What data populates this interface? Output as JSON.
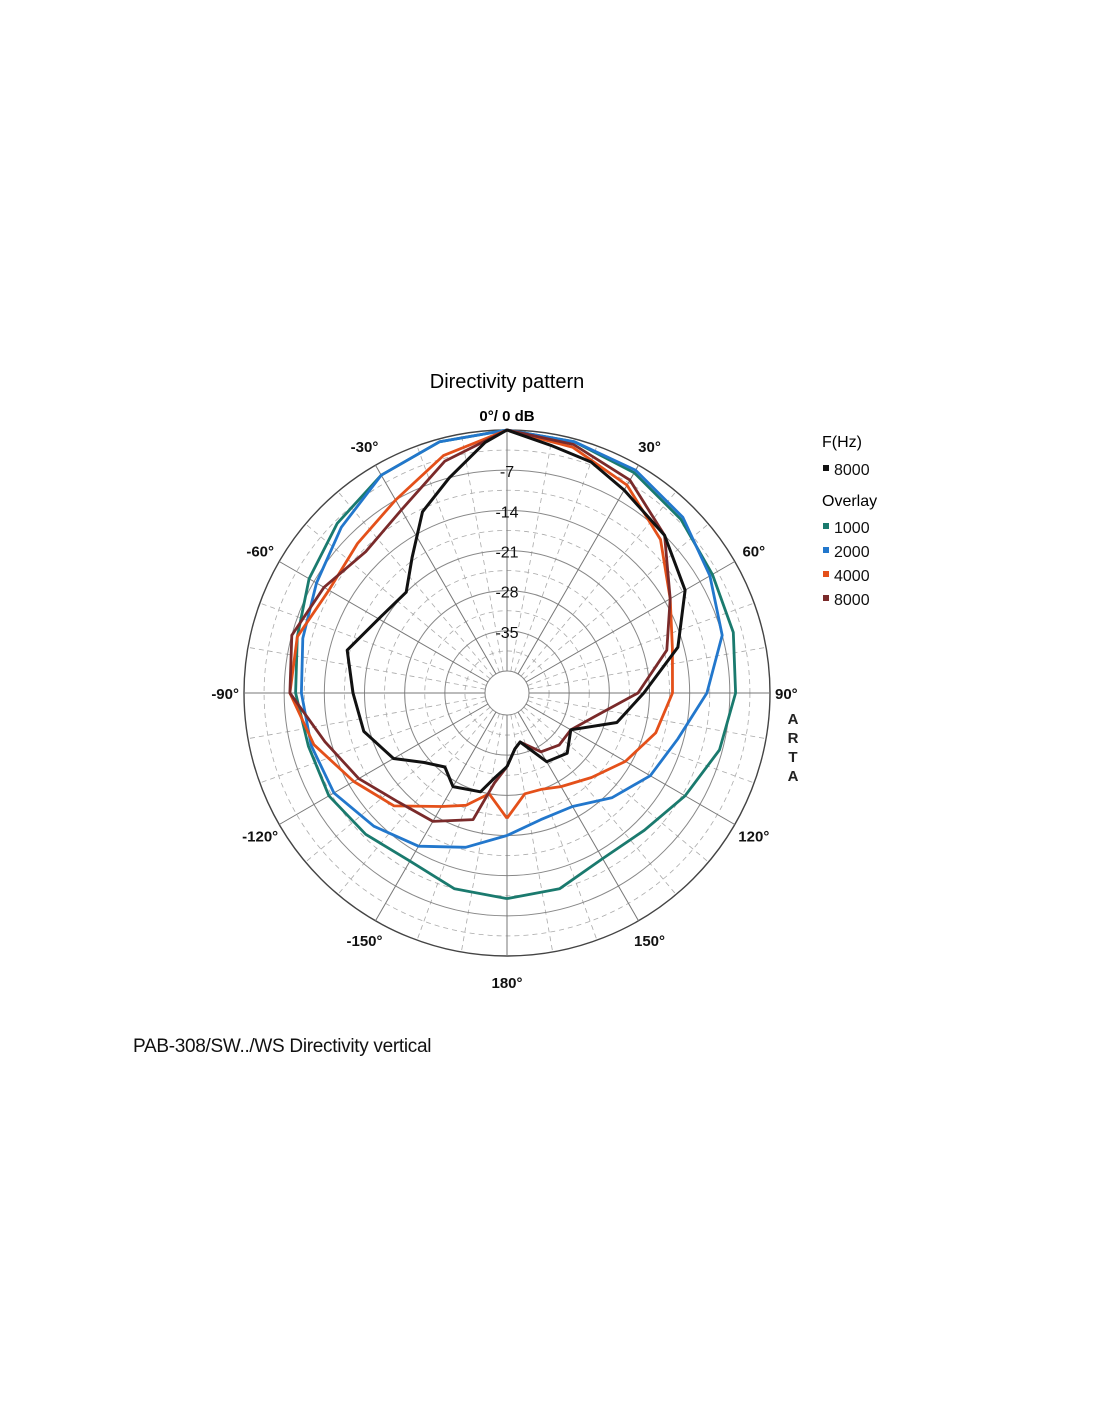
{
  "chart_data": {
    "type": "polar",
    "title": "Directivity pattern",
    "top_label": "0°/ 0 dB",
    "radial_scale": {
      "max_db": 0,
      "min_db": -42,
      "tick_values": [
        -7,
        -14,
        -21,
        -28,
        -35
      ],
      "tick_labels": [
        "-7",
        "-14",
        "-21",
        "-28",
        "-35"
      ]
    },
    "angle_ticks": [
      {
        "deg": -30,
        "label": "-30°"
      },
      {
        "deg": 30,
        "label": "30°"
      },
      {
        "deg": -60,
        "label": "-60°"
      },
      {
        "deg": 60,
        "label": "60°"
      },
      {
        "deg": -90,
        "label": "-90°"
      },
      {
        "deg": 90,
        "label": "90°"
      },
      {
        "deg": -120,
        "label": "-120°"
      },
      {
        "deg": 120,
        "label": "120°"
      },
      {
        "deg": -150,
        "label": "-150°"
      },
      {
        "deg": 150,
        "label": "150°"
      },
      {
        "deg": 180,
        "label": "180°"
      }
    ],
    "watermark": [
      "A",
      "R",
      "T",
      "A"
    ],
    "legend": {
      "heading": "F(Hz)",
      "main_entry": "8000",
      "overlay_heading": "Overlay",
      "overlay_entries": [
        "1000",
        "2000",
        "4000",
        "8000"
      ]
    },
    "series": [
      {
        "name": "1000",
        "group": "overlay",
        "color": "#1a7a6e",
        "angles": [
          -180,
          -165,
          -150,
          -135,
          -120,
          -105,
          -90,
          -75,
          -60,
          -45,
          -30,
          -15,
          0,
          15,
          30,
          45,
          60,
          75,
          90,
          105,
          120,
          135,
          150,
          165,
          180
        ],
        "db": [
          -10,
          -10.5,
          -12,
          -11,
          -10,
          -10,
          -9,
          -8,
          -6,
          -4,
          -2,
          -0.5,
          0,
          -0.5,
          -1.5,
          -3,
          -4.5,
          -5,
          -6,
          -7.5,
          -10,
          -12,
          -12.5,
          -10.5,
          -10
        ]
      },
      {
        "name": "2000",
        "group": "overlay",
        "color": "#2277cc",
        "angles": [
          -180,
          -165,
          -150,
          -135,
          -120,
          -105,
          -90,
          -75,
          -60,
          -45,
          -30,
          -15,
          0,
          15,
          30,
          45,
          60,
          75,
          90,
          105,
          120,
          135,
          150,
          165,
          180
        ],
        "db": [
          -21,
          -18,
          -15,
          -13,
          -11,
          -10.5,
          -10,
          -9,
          -7.5,
          -5,
          -2,
          -0.5,
          0,
          -0.5,
          -1,
          -2.5,
          -5,
          -7,
          -11,
          -15,
          -17,
          -20,
          -23,
          -23,
          -21
        ]
      },
      {
        "name": "4000",
        "group": "overlay",
        "color": "#e4501a",
        "angles": [
          -180,
          -170,
          -160,
          -150,
          -135,
          -120,
          -105,
          -90,
          -75,
          -60,
          -45,
          -30,
          -15,
          0,
          15,
          30,
          45,
          60,
          75,
          90,
          105,
          120,
          135,
          150,
          160,
          170,
          180
        ],
        "db": [
          -24,
          -28,
          -25,
          -23,
          -18,
          -15,
          -11,
          -8,
          -8,
          -10,
          -9,
          -7,
          -3,
          0,
          -1.5,
          -4,
          -8,
          -13,
          -16,
          -17,
          -19,
          -22,
          -25,
          -27,
          -28,
          -28,
          -24
        ]
      },
      {
        "name": "8000",
        "group": "overlay",
        "color": "#7a2a2a",
        "angles": [
          -180,
          -172,
          -165,
          -150,
          -135,
          -120,
          -105,
          -90,
          -75,
          -60,
          -45,
          -30,
          -15,
          0,
          15,
          30,
          45,
          60,
          75,
          90,
          105,
          120,
          135,
          150,
          165,
          172,
          180
        ],
        "db": [
          -33,
          -30,
          -23,
          -20,
          -19,
          -16,
          -13,
          -8,
          -7,
          -9,
          -11,
          -9,
          -4,
          0,
          -1,
          -3,
          -7,
          -13,
          -17,
          -23,
          -30,
          -33,
          -33,
          -34,
          -37,
          -36,
          -33
        ]
      },
      {
        "name": "8000",
        "group": "main",
        "color": "#111111",
        "angles": [
          -180,
          -172,
          -165,
          -150,
          -140,
          -130,
          -120,
          -105,
          -90,
          -75,
          -60,
          -45,
          -35,
          -25,
          -15,
          -5,
          0,
          10,
          20,
          30,
          45,
          60,
          75,
          90,
          105,
          120,
          135,
          150,
          165,
          172,
          180
        ],
        "db": [
          -33,
          -31,
          -28,
          -27,
          -29,
          -27,
          -23,
          -20,
          -19,
          -17,
          -20,
          -21,
          -17,
          -11,
          -7,
          -2,
          0,
          -2,
          -3,
          -5,
          -7,
          -10,
          -15,
          -22,
          -26,
          -33,
          -31,
          -32,
          -37,
          -36,
          -33
        ]
      }
    ]
  },
  "caption": "PAB-308/SW../WS  Directivity vertical"
}
